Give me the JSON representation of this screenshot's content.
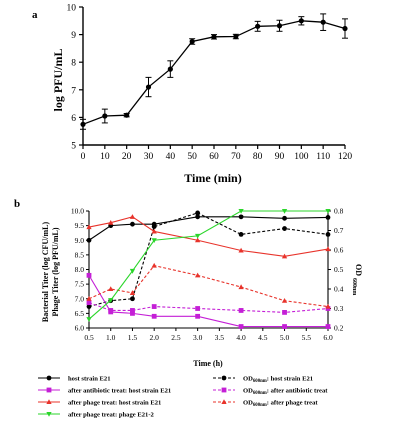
{
  "chart_data": [
    {
      "panel": "a",
      "type": "line",
      "xlabel": "Time (min)",
      "ylabel": "log PFU/mL",
      "x": [
        0,
        10,
        20,
        30,
        40,
        50,
        60,
        70,
        80,
        90,
        100,
        110,
        120
      ],
      "xlim": [
        0,
        120
      ],
      "ylim": [
        5,
        10
      ],
      "xticks": [
        "0",
        "10",
        "20",
        "30",
        "40",
        "50",
        "60",
        "70",
        "80",
        "90",
        "100",
        "110",
        "120"
      ],
      "yticks": [
        "5",
        "6",
        "7",
        "8",
        "9",
        "10"
      ],
      "series": [
        {
          "values": [
            5.75,
            6.05,
            6.08,
            7.1,
            7.75,
            8.75,
            8.92,
            8.93,
            9.3,
            9.32,
            9.5,
            9.45,
            9.22
          ],
          "errors": [
            0.18,
            0.25,
            0.06,
            0.35,
            0.3,
            0.1,
            0.08,
            0.08,
            0.18,
            0.2,
            0.15,
            0.3,
            0.35
          ],
          "color": "#000000"
        }
      ],
      "grid": false
    },
    {
      "panel": "b",
      "type": "line",
      "xlabel": "Time (h)",
      "ylabel_left_1": "Bacterial Titer (log CFU/mL)",
      "ylabel_left_2": "Phage Titer (log PFU/mL)",
      "ylabel_right_main": "OD",
      "ylabel_right_sub": "600nm",
      "x": [
        0.5,
        1.0,
        1.5,
        2.0,
        3.0,
        4.0,
        5.0,
        6.0
      ],
      "xlim": [
        0.5,
        6.0
      ],
      "ylim_left": [
        6.0,
        10.0
      ],
      "ylim_right": [
        0.2,
        0.8
      ],
      "xticks": [
        "0.5",
        "1.0",
        "1.5",
        "2.0",
        "2.5",
        "3.0",
        "3.5",
        "4.0",
        "4.5",
        "5.0",
        "5.5",
        "6.0"
      ],
      "yticks_left": [
        "6.0",
        "6.5",
        "7.0",
        "7.5",
        "8.0",
        "8.5",
        "9.0",
        "9.5",
        "10.0"
      ],
      "yticks_right": [
        "0.2",
        "0.3",
        "0.4",
        "0.5",
        "0.6",
        "0.7",
        "0.8"
      ],
      "series": [
        {
          "name": "host strain E21",
          "axis": "left",
          "style": "solid",
          "marker": "circle",
          "color": "#000000",
          "values": [
            9.0,
            9.5,
            9.55,
            9.55,
            9.8,
            9.8,
            9.75,
            9.78
          ]
        },
        {
          "name": "OD600nm: host strain E21",
          "axis": "right",
          "style": "dashed",
          "marker": "circle",
          "color": "#000000",
          "values": [
            0.31,
            0.34,
            0.35,
            0.72,
            0.79,
            0.68,
            0.71,
            0.68
          ]
        },
        {
          "name": "after antibiotic treat: host strain E21",
          "axis": "left",
          "style": "solid",
          "marker": "square",
          "color": "#c41fd6",
          "values": [
            7.8,
            6.55,
            6.5,
            6.4,
            6.4,
            6.05,
            6.05,
            6.05
          ]
        },
        {
          "name": "OD600nm: after antibiotic treat",
          "axis": "right",
          "style": "dashed",
          "marker": "square",
          "color": "#c41fd6",
          "values": [
            0.33,
            0.29,
            0.29,
            0.31,
            0.3,
            0.29,
            0.28,
            0.3
          ]
        },
        {
          "name": "after phage treat: host strain E21",
          "axis": "left",
          "style": "solid",
          "marker": "triangle",
          "color": "#e8332b",
          "values": [
            9.45,
            9.6,
            9.8,
            9.3,
            9.0,
            8.65,
            8.45,
            8.7
          ]
        },
        {
          "name": "OD600nm: after phage treat",
          "axis": "right",
          "style": "dashed",
          "marker": "triangle",
          "color": "#e8332b",
          "values": [
            0.35,
            0.4,
            0.38,
            0.52,
            0.47,
            0.41,
            0.34,
            0.31
          ]
        },
        {
          "name": "after phage treat: phage E21-2",
          "axis": "left",
          "style": "solid",
          "marker": "triangle-down",
          "color": "#2bd62b",
          "values": [
            6.3,
            6.95,
            7.95,
            9.0,
            9.15,
            10.0,
            10.0,
            10.0
          ]
        }
      ],
      "grid": false
    }
  ]
}
